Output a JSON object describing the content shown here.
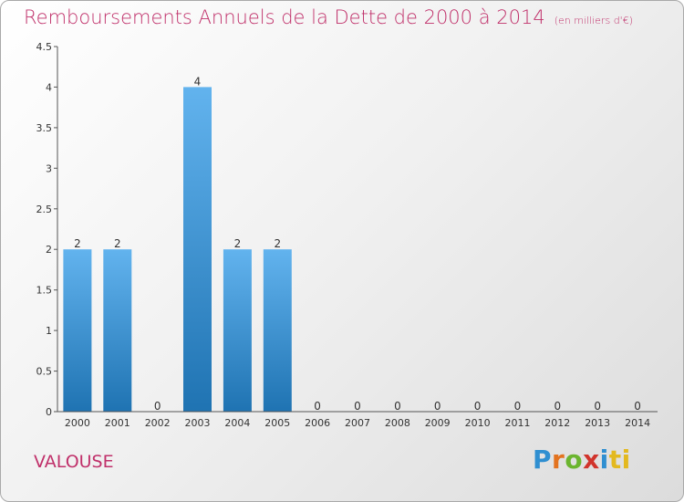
{
  "header": {
    "title": "Remboursements Annuels de la Dette de 2000 à 2014",
    "unit_note": "(en milliers d'€)"
  },
  "footer": {
    "commune": "VALOUSE",
    "logo_text": "Proxiti"
  },
  "colors": {
    "title": "#c0306a",
    "bar_top": "#62b3ee",
    "bar_bottom": "#1f73b2",
    "axis": "#555555"
  },
  "chart_data": {
    "type": "bar",
    "title": "Remboursements Annuels de la Dette de 2000 à 2014",
    "subtitle": "(en milliers d'€)",
    "xlabel": "",
    "ylabel": "",
    "categories": [
      "2000",
      "2001",
      "2002",
      "2003",
      "2004",
      "2005",
      "2006",
      "2007",
      "2008",
      "2009",
      "2010",
      "2011",
      "2012",
      "2013",
      "2014"
    ],
    "values": [
      2,
      2,
      0,
      4,
      2,
      2,
      0,
      0,
      0,
      0,
      0,
      0,
      0,
      0,
      0
    ],
    "value_labels": [
      "2",
      "2",
      "0",
      "4",
      "2",
      "2",
      "0",
      "0",
      "0",
      "0",
      "0",
      "0",
      "0",
      "0",
      "0"
    ],
    "ylim": [
      0,
      4.5
    ],
    "yticks": [
      0,
      0.5,
      1,
      1.5,
      2,
      2.5,
      3,
      3.5,
      4,
      4.5
    ],
    "ytick_labels": [
      "0",
      "0.5",
      "1",
      "1.5",
      "2",
      "2.5",
      "3",
      "3.5",
      "4",
      "4.5"
    ],
    "grid": false,
    "legend": "none"
  }
}
